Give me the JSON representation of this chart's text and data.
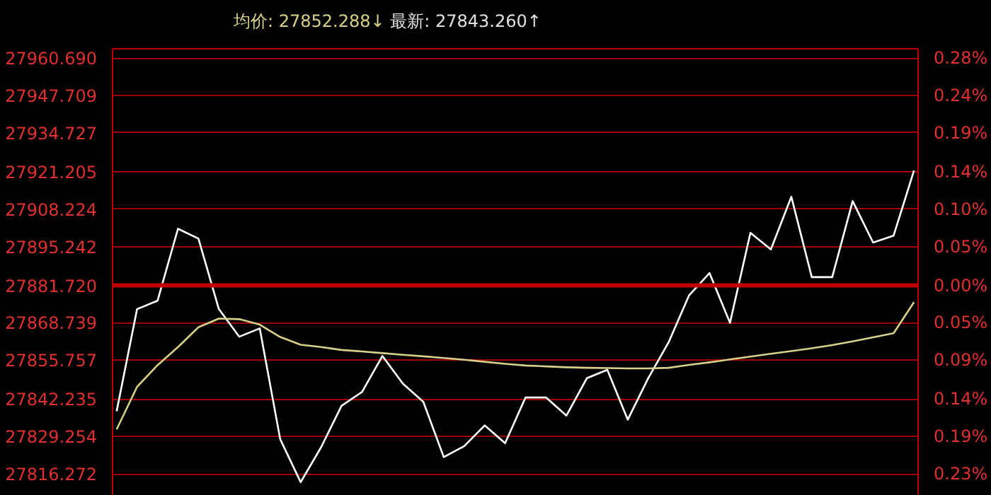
{
  "chart_data": {
    "type": "line",
    "title": "均价: 27852.288↓",
    "subtitle": "最新: 27843.260↑",
    "categories": [
      null,
      null,
      null,
      null,
      null,
      null,
      null,
      null,
      null,
      null,
      null,
      null,
      null,
      null,
      null,
      null,
      null,
      null,
      null,
      null,
      null,
      null,
      null,
      null,
      null,
      null,
      null,
      null,
      null,
      null,
      null,
      null,
      null,
      null,
      null,
      null,
      null,
      null,
      null,
      null
    ],
    "ylim": [
      27807.7,
      27963.9
    ],
    "yticks": [
      {
        "value": 27816.272,
        "label": "27816.272"
      },
      {
        "value": 27829.254,
        "label": "27829.254"
      },
      {
        "value": 27842.235,
        "label": "27842.235"
      },
      {
        "value": 27855.757,
        "label": "27855.757"
      },
      {
        "value": 27868.739,
        "label": "27868.739"
      },
      {
        "value": 27881.72,
        "label": "27881.720"
      },
      {
        "value": 27895.242,
        "label": "27895.242"
      },
      {
        "value": 27908.224,
        "label": "27908.224"
      },
      {
        "value": 27921.205,
        "label": "27921.205"
      },
      {
        "value": 27934.727,
        "label": "27934.727"
      },
      {
        "value": 27947.709,
        "label": "27947.709"
      },
      {
        "value": 27960.69,
        "label": "27960.690"
      }
    ],
    "y2lim": [
      -0.2655,
      0.2947
    ],
    "y2ticks": [
      {
        "value": -0.2347,
        "label": "0.23%"
      },
      {
        "value": -0.1882,
        "label": "0.19%"
      },
      {
        "value": -0.1416,
        "label": "0.14%"
      },
      {
        "value": -0.0931,
        "label": "0.09%"
      },
      {
        "value": -0.0466,
        "label": "0.05%"
      },
      {
        "value": 0,
        "label": "0.00%"
      },
      {
        "value": 0.0485,
        "label": "0.05%"
      },
      {
        "value": 0.0951,
        "label": "0.10%"
      },
      {
        "value": 0.1416,
        "label": "0.14%"
      },
      {
        "value": 0.1901,
        "label": "0.19%"
      },
      {
        "value": 0.2367,
        "label": "0.24%"
      },
      {
        "value": 0.2832,
        "label": "0.28%"
      }
    ],
    "tick_labels": "y",
    "grid": "y",
    "ref_lines": [
      {
        "axis": "y",
        "value": 27881.72,
        "color": "#c00000"
      }
    ],
    "series": [
      {
        "color": "#ffffff",
        "values": [
          27838.0,
          27873.5,
          27876.4,
          27901.4,
          27898.0,
          27873.5,
          27863.9,
          27866.8,
          27828.3,
          27813.4,
          27825.5,
          27839.9,
          27844.7,
          27857.2,
          27847.6,
          27841.3,
          27822.1,
          27825.9,
          27833.1,
          27826.9,
          27842.8,
          27842.8,
          27836.5,
          27849.5,
          27852.4,
          27835.1,
          27849.5,
          27862.0,
          27878.3,
          27886.0,
          27868.7,
          27900.0,
          27894.2,
          27912.5,
          27884.6,
          27884.6,
          27911.0,
          27896.6,
          27899.0,
          27921.6
        ]
      },
      {
        "color": "#d8d088",
        "values": [
          27831.7,
          27846.5,
          27854.0,
          27860.3,
          27867.2,
          27870.2,
          27870.0,
          27868.1,
          27863.8,
          27861.1,
          27860.3,
          27859.3,
          27858.8,
          27858.2,
          27857.6,
          27857.1,
          27856.5,
          27855.9,
          27855.2,
          27854.5,
          27853.9,
          27853.6,
          27853.3,
          27853.1,
          27853.0,
          27852.9,
          27852.9,
          27853.1,
          27854.1,
          27855.0,
          27856.0,
          27857.0,
          27858.0,
          27858.9,
          27859.9,
          27861.0,
          27862.3,
          27863.7,
          27865.1,
          27875.9
        ]
      }
    ]
  }
}
